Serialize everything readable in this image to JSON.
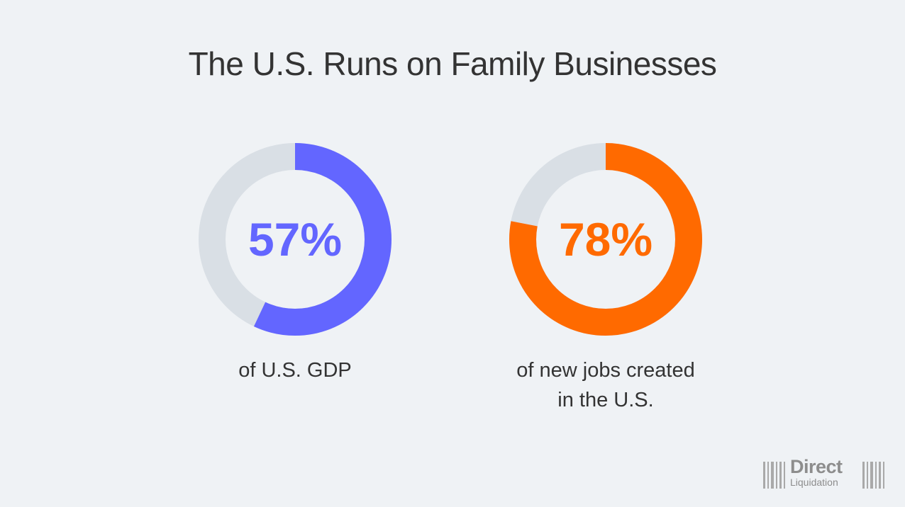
{
  "title": "The U.S. Runs on Family Businesses",
  "colors": {
    "track": "#d9dfe5",
    "blue": "#6366ff",
    "orange": "#ff6a00",
    "text": "#333333",
    "logo": "#8d8d8d"
  },
  "chart_data": [
    {
      "type": "pie",
      "value": 57,
      "value_label": "57%",
      "caption": [
        "of U.S. GDP"
      ],
      "color": "#6366ff"
    },
    {
      "type": "pie",
      "value": 78,
      "value_label": "78%",
      "caption": [
        "of new jobs created",
        "in the U.S."
      ],
      "color": "#ff6a00"
    }
  ],
  "logo": {
    "line1": "Direct",
    "line2": "Liquidation"
  }
}
